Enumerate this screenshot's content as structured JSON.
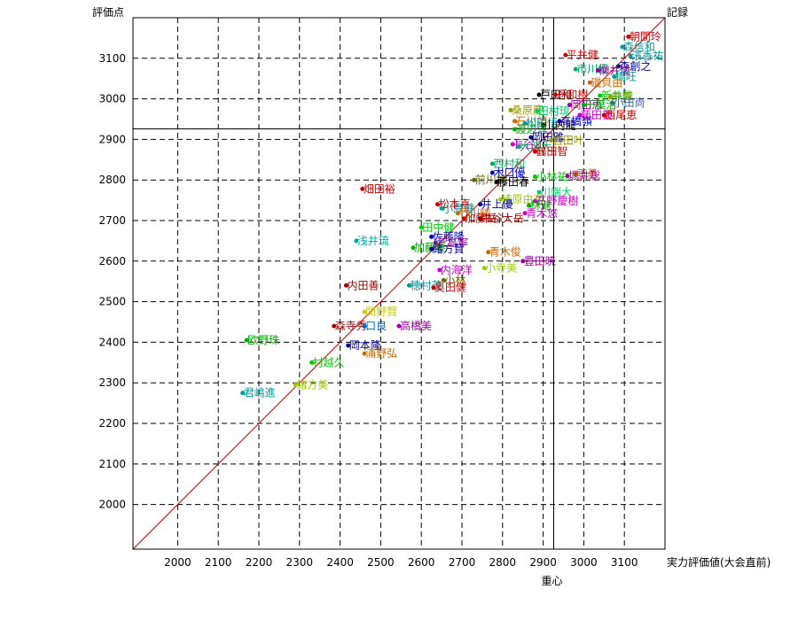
{
  "chart_data": {
    "type": "scatter",
    "title": "",
    "xlabel": "実力評価値(大会直前)",
    "ylabel": "評価点",
    "diagonal_label": "記録",
    "centroid_label": "重心",
    "xlim": [
      1890,
      3200
    ],
    "ylim": [
      1890,
      3200
    ],
    "x_ticks": [
      2000,
      2100,
      2200,
      2300,
      2400,
      2500,
      2600,
      2700,
      2800,
      2900,
      3000,
      3100
    ],
    "y_ticks": [
      2000,
      2100,
      2200,
      2300,
      2400,
      2500,
      2600,
      2700,
      2800,
      2900,
      3000,
      3100
    ],
    "grid": true,
    "legend": "none",
    "centroid": {
      "x": 2926,
      "y": 2926
    },
    "points": [
      {
        "name": "朝間玲",
        "x": 3110,
        "y": 3153,
        "color": "#cc0000"
      },
      {
        "name": "森信和",
        "x": 3095,
        "y": 3128,
        "color": "#009999"
      },
      {
        "name": "平井健",
        "x": 2955,
        "y": 3108,
        "color": "#cc0000"
      },
      {
        "name": "濱香祐",
        "x": 3115,
        "y": 3106,
        "color": "#009999"
      },
      {
        "name": "森創之",
        "x": 3085,
        "y": 3080,
        "color": "#000099"
      },
      {
        "name": "市川優",
        "x": 2980,
        "y": 3073,
        "color": "#00aa66"
      },
      {
        "name": "柳井凌",
        "x": 3035,
        "y": 3070,
        "color": "#990099"
      },
      {
        "name": "橋旺",
        "x": 3075,
        "y": 3055,
        "color": "#009999"
      },
      {
        "name": "磯貝由",
        "x": 3015,
        "y": 3040,
        "color": "#cc6600"
      },
      {
        "name": "戸田和",
        "x": 2890,
        "y": 3010,
        "color": "#000000"
      },
      {
        "name": "丹和樹",
        "x": 2930,
        "y": 3010,
        "color": "#cc0000"
      },
      {
        "name": "新井駿",
        "x": 3040,
        "y": 3008,
        "color": "#00cc00"
      },
      {
        "name": "中貴",
        "x": 3065,
        "y": 3005,
        "color": "#999900"
      },
      {
        "name": "小田尚",
        "x": 3070,
        "y": 2990,
        "color": "#3366cc"
      },
      {
        "name": "岡田恵",
        "x": 2965,
        "y": 2985,
        "color": "#990099"
      },
      {
        "name": "千葉治",
        "x": 3000,
        "y": 2985,
        "color": "#00aa00"
      },
      {
        "name": "桑原慶",
        "x": 2820,
        "y": 2972,
        "color": "#999900"
      },
      {
        "name": "田村琉",
        "x": 2885,
        "y": 2970,
        "color": "#00cc66"
      },
      {
        "name": "藤田義",
        "x": 2990,
        "y": 2960,
        "color": "#cc00cc"
      },
      {
        "name": "西尾恵",
        "x": 3050,
        "y": 2960,
        "color": "#cc0000"
      },
      {
        "name": "石川靖",
        "x": 2830,
        "y": 2945,
        "color": "#cc6600"
      },
      {
        "name": "松田悟",
        "x": 2855,
        "y": 2940,
        "color": "#009999"
      },
      {
        "name": "山内龍",
        "x": 2900,
        "y": 2935,
        "color": "#000000"
      },
      {
        "name": "高橋嶺",
        "x": 2940,
        "y": 2945,
        "color": "#0000cc"
      },
      {
        "name": "渡辺淳",
        "x": 2830,
        "y": 2925,
        "color": "#00aa00"
      },
      {
        "name": "岡田雅",
        "x": 2870,
        "y": 2905,
        "color": "#000099"
      },
      {
        "name": "岩田叶",
        "x": 2920,
        "y": 2898,
        "color": "#999900"
      },
      {
        "name": "長谷川",
        "x": 2825,
        "y": 2888,
        "color": "#cc00cc"
      },
      {
        "name": "大濱大",
        "x": 2840,
        "y": 2882,
        "color": "#00aa66"
      },
      {
        "name": "鶴田智",
        "x": 2880,
        "y": 2870,
        "color": "#cc0000"
      },
      {
        "name": "西村和",
        "x": 2775,
        "y": 2840,
        "color": "#00aa66"
      },
      {
        "name": "木口優",
        "x": 2775,
        "y": 2818,
        "color": "#0000cc"
      },
      {
        "name": "前川鈍",
        "x": 2730,
        "y": 2800,
        "color": "#666600"
      },
      {
        "name": "藤田春",
        "x": 2785,
        "y": 2795,
        "color": "#000000"
      },
      {
        "name": "小林祐",
        "x": 2880,
        "y": 2808,
        "color": "#00cc00"
      },
      {
        "name": "亘勇",
        "x": 2980,
        "y": 2815,
        "color": "#cc6600"
      },
      {
        "name": "堀井聡",
        "x": 2960,
        "y": 2810,
        "color": "#990099"
      },
      {
        "name": "川端大",
        "x": 2890,
        "y": 2770,
        "color": "#00cc66"
      },
      {
        "name": "椿原由有",
        "x": 2795,
        "y": 2752,
        "color": "#99cc00"
      },
      {
        "name": "石野慶樹",
        "x": 2880,
        "y": 2748,
        "color": "#cc00cc"
      },
      {
        "name": "林健",
        "x": 2865,
        "y": 2737,
        "color": "#00aa00"
      },
      {
        "name": "松本喜",
        "x": 2640,
        "y": 2740,
        "color": "#cc0000"
      },
      {
        "name": "小島健",
        "x": 2650,
        "y": 2730,
        "color": "#009999"
      },
      {
        "name": "井上優",
        "x": 2745,
        "y": 2740,
        "color": "#000099"
      },
      {
        "name": "竹川晴",
        "x": 2690,
        "y": 2718,
        "color": "#cc6600"
      },
      {
        "name": "青木悠",
        "x": 2855,
        "y": 2718,
        "color": "#cc00cc"
      },
      {
        "name": "加藤岳",
        "x": 2705,
        "y": 2705,
        "color": "#cc0000"
      },
      {
        "name": "中谷大岳",
        "x": 2745,
        "y": 2705,
        "color": "#990000"
      },
      {
        "name": "畑田裕",
        "x": 2455,
        "y": 2778,
        "color": "#cc0000"
      },
      {
        "name": "田中健",
        "x": 2600,
        "y": 2683,
        "color": "#00cc00"
      },
      {
        "name": "佐藤隆",
        "x": 2625,
        "y": 2660,
        "color": "#0000cc"
      },
      {
        "name": "浅井琉",
        "x": 2440,
        "y": 2650,
        "color": "#00aaaa"
      },
      {
        "name": "三島寧",
        "x": 2635,
        "y": 2645,
        "color": "#990099"
      },
      {
        "name": "加藤泰",
        "x": 2580,
        "y": 2633,
        "color": "#00aa00"
      },
      {
        "name": "緒方賢",
        "x": 2625,
        "y": 2630,
        "color": "#000099"
      },
      {
        "name": "青木俊",
        "x": 2765,
        "y": 2622,
        "color": "#cc6600"
      },
      {
        "name": "豊田暁",
        "x": 2850,
        "y": 2600,
        "color": "#990099"
      },
      {
        "name": "内海洋",
        "x": 2645,
        "y": 2578,
        "color": "#cc00cc"
      },
      {
        "name": "小寺美",
        "x": 2755,
        "y": 2583,
        "color": "#99cc00"
      },
      {
        "name": "小林",
        "x": 2655,
        "y": 2553,
        "color": "#666600"
      },
      {
        "name": "内田善",
        "x": 2415,
        "y": 2540,
        "color": "#990000"
      },
      {
        "name": "穂村茂",
        "x": 2570,
        "y": 2540,
        "color": "#009999"
      },
      {
        "name": "奥田健",
        "x": 2630,
        "y": 2535,
        "color": "#cc0000"
      },
      {
        "name": "関野賢",
        "x": 2460,
        "y": 2475,
        "color": "#cccc00"
      },
      {
        "name": "森寺秀",
        "x": 2385,
        "y": 2440,
        "color": "#990000"
      },
      {
        "name": "口良",
        "x": 2460,
        "y": 2440,
        "color": "#0066cc"
      },
      {
        "name": "高橋美",
        "x": 2545,
        "y": 2440,
        "color": "#990099"
      },
      {
        "name": "欧野珠",
        "x": 2170,
        "y": 2405,
        "color": "#00aa00"
      },
      {
        "name": "岡本隆",
        "x": 2420,
        "y": 2392,
        "color": "#000099"
      },
      {
        "name": "浦野弘",
        "x": 2460,
        "y": 2372,
        "color": "#cc6600"
      },
      {
        "name": "村越久",
        "x": 2330,
        "y": 2350,
        "color": "#00cc00"
      },
      {
        "name": "緒方美",
        "x": 2290,
        "y": 2295,
        "color": "#99cc00"
      },
      {
        "name": "君嶋進",
        "x": 2160,
        "y": 2275,
        "color": "#009999"
      }
    ]
  }
}
